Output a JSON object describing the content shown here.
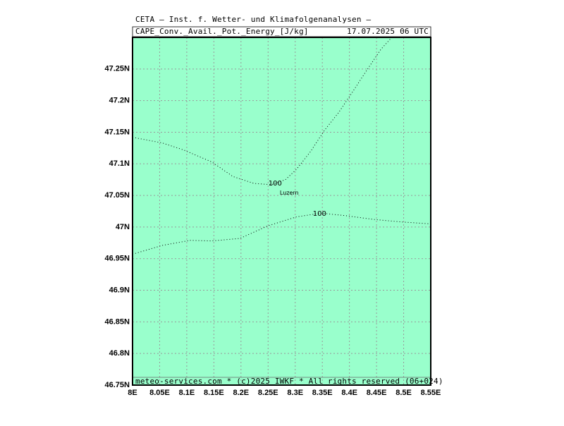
{
  "chart_data": {
    "type": "contour",
    "title": "CETA — Inst. f. Wetter- und Klimafolgenanalysen —",
    "subtitle": "CAPE_Conv._Avail._Pot._Energy_[J/kg]",
    "date": "17.07.2025 06 UTC",
    "footer": "meteo-services.com * (c)2025 IWKF * All rights reserved (06+024)",
    "fill_color": "#99ffcc",
    "grid": true,
    "xlim": [
      8,
      8.55
    ],
    "ylim": [
      46.75,
      47.3
    ],
    "xticks": [
      {
        "value": 8,
        "label": "8E"
      },
      {
        "value": 8.05,
        "label": "8.05E"
      },
      {
        "value": 8.1,
        "label": "8.1E"
      },
      {
        "value": 8.15,
        "label": "8.15E"
      },
      {
        "value": 8.2,
        "label": "8.2E"
      },
      {
        "value": 8.25,
        "label": "8.25E"
      },
      {
        "value": 8.3,
        "label": "8.3E"
      },
      {
        "value": 8.35,
        "label": "8.35E"
      },
      {
        "value": 8.4,
        "label": "8.4E"
      },
      {
        "value": 8.45,
        "label": "8.45E"
      },
      {
        "value": 8.5,
        "label": "8.5E"
      },
      {
        "value": 8.55,
        "label": "8.55E"
      }
    ],
    "yticks": [
      {
        "value": 46.75,
        "label": "46.75N"
      },
      {
        "value": 46.8,
        "label": "46.8N"
      },
      {
        "value": 46.85,
        "label": "46.85N"
      },
      {
        "value": 46.9,
        "label": "46.9N"
      },
      {
        "value": 46.95,
        "label": "46.95N"
      },
      {
        "value": 47,
        "label": "47N"
      },
      {
        "value": 47.05,
        "label": "47.05N"
      },
      {
        "value": 47.1,
        "label": "47.1N"
      },
      {
        "value": 47.15,
        "label": "47.15N"
      },
      {
        "value": 47.2,
        "label": "47.2N"
      },
      {
        "value": 47.25,
        "label": "47.25N"
      }
    ],
    "contours": [
      {
        "label": "100",
        "label_lon": 8.263,
        "label_lat": 47.069,
        "lon": [
          8,
          8.055,
          8.094,
          8.146,
          8.185,
          8.224,
          8.256,
          8.282,
          8.302,
          8.328,
          8.354,
          8.38,
          8.406,
          8.432,
          8.458,
          8.478
        ],
        "lat": [
          47.142,
          47.133,
          47.122,
          47.103,
          47.08,
          47.069,
          47.067,
          47.075,
          47.091,
          47.119,
          47.153,
          47.181,
          47.214,
          47.248,
          47.281,
          47.3
        ]
      },
      {
        "label": "100",
        "label_lon": 8.345,
        "label_lat": 47.021,
        "lon": [
          8,
          8.055,
          8.107,
          8.146,
          8.198,
          8.25,
          8.302,
          8.347,
          8.393,
          8.445,
          8.497,
          8.55
        ],
        "lat": [
          46.957,
          46.971,
          46.979,
          46.978,
          46.982,
          47.002,
          47.016,
          47.022,
          47.018,
          47.012,
          47.008,
          47.005
        ]
      }
    ],
    "places": [
      {
        "name": "Luzern",
        "lon": 8.289,
        "lat": 47.054
      }
    ]
  }
}
